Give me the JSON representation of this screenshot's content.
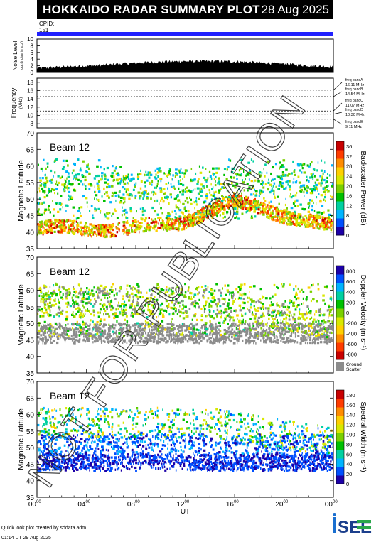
{
  "header": {
    "title": "HOKKAIDO RADAR SUMMARY PLOT",
    "date": "28 Aug 2025",
    "cpid_label": "CPID:",
    "cpid_value": "151"
  },
  "footer": {
    "credit": "Quick look plot created by sddata.adm",
    "timestamp": "01:14 UT 29 Aug 2025",
    "logo_text": "ISEE"
  },
  "watermark": "NOT FOR PUBLICATION",
  "colors": {
    "accent_bar": "#2121ff",
    "ground_scatter": "#8c8c8c"
  },
  "chart_data": [
    {
      "type": "area",
      "name": "noise-level",
      "ylabel": "Noise Level",
      "ylabel_sub": "log₁₀(noise in a.u.)",
      "yticks": [
        "0",
        "2",
        "4",
        "6",
        "8",
        "10"
      ],
      "ylim": [
        0,
        10
      ],
      "x": [
        0,
        2,
        4,
        6,
        8,
        10,
        12,
        14,
        16,
        18,
        20,
        22,
        24
      ],
      "values": [
        1.2,
        1.6,
        1.9,
        2.3,
        2.8,
        3.1,
        3.3,
        3.3,
        3.2,
        2.9,
        2.5,
        2.0,
        1.6
      ]
    },
    {
      "type": "line",
      "name": "frequency",
      "ylabel": "Frequency",
      "ylabel_sub": "(MHz)",
      "yticks": [
        "8",
        "10",
        "12",
        "14",
        "16",
        "18"
      ],
      "ylim": [
        7,
        19
      ],
      "bands": [
        {
          "label": "freq bandA",
          "value": "16.11 MHz",
          "freq": 16.11
        },
        {
          "label": "freq bandB",
          "value": "14.54 MHz",
          "freq": 14.54
        },
        {
          "label": "freq bandC",
          "value": "11.07 MHz",
          "freq": 11.07
        },
        {
          "label": "freq bandD",
          "value": "10.30 MHz",
          "freq": 10.3
        },
        {
          "label": "freq bandE",
          "value": "9.11 MHz",
          "freq": 9.11
        }
      ]
    },
    {
      "type": "heatmap",
      "name": "backscatter-power",
      "beam": "Beam 12",
      "ylabel": "Magnetic Latitude",
      "yticks": [
        "35",
        "40",
        "45",
        "50",
        "55",
        "60",
        "65",
        "70"
      ],
      "ylim": [
        35,
        70
      ],
      "colorbar_label": "Backscatter Power (dB)",
      "colorbar_ticks": [
        "0",
        "4",
        "8",
        "12",
        "16",
        "20",
        "24",
        "28",
        "32",
        "36"
      ],
      "colorbar_range": [
        0,
        38
      ],
      "colormap": [
        "#1c00a8",
        "#0050ff",
        "#00b4ff",
        "#00d0a0",
        "#00c000",
        "#7ad000",
        "#d8e800",
        "#ffd000",
        "#ff8c00",
        "#ff3c00",
        "#c80000"
      ]
    },
    {
      "type": "heatmap",
      "name": "doppler-velocity",
      "beam": "Beam 12",
      "ylabel": "Magnetic Latitude",
      "yticks": [
        "35",
        "40",
        "45",
        "50",
        "55",
        "60",
        "65",
        "70"
      ],
      "ylim": [
        35,
        70
      ],
      "colorbar_label": "Doppler Velocity (m s⁻¹)",
      "colorbar_ticks": [
        "800",
        "600",
        "400",
        "200",
        "0",
        "-200",
        "-400",
        "-600",
        "-800"
      ],
      "colorbar_range": [
        -900,
        900
      ],
      "colormap": [
        "#c80000",
        "#ff3c00",
        "#ff8c00",
        "#ffd000",
        "#d8e800",
        "#7ad000",
        "#00c000",
        "#00d0a0",
        "#00b4ff",
        "#0050ff",
        "#1c00a8"
      ],
      "ground_scatter_label": [
        "Ground",
        "Scatter"
      ]
    },
    {
      "type": "heatmap",
      "name": "spectral-width",
      "beam": "Beam 12",
      "ylabel": "Magnetic Latitude",
      "yticks": [
        "35",
        "40",
        "45",
        "50",
        "55",
        "60",
        "65",
        "70"
      ],
      "ylim": [
        35,
        70
      ],
      "colorbar_label": "Spectral Width (m s⁻¹)",
      "colorbar_ticks": [
        "0",
        "20",
        "40",
        "60",
        "80",
        "100",
        "120",
        "140",
        "160",
        "180"
      ],
      "colorbar_range": [
        0,
        190
      ],
      "colormap": [
        "#1c00a8",
        "#0050ff",
        "#00b4ff",
        "#00d0a0",
        "#00c000",
        "#7ad000",
        "#d8e800",
        "#ffd000",
        "#ff8c00",
        "#ff3c00",
        "#c80000"
      ]
    }
  ],
  "time_axis": {
    "label": "UT",
    "range": [
      0,
      24
    ],
    "ticks": [
      {
        "h": "00",
        "m": "00"
      },
      {
        "h": "04",
        "m": "00"
      },
      {
        "h": "08",
        "m": "00"
      },
      {
        "h": "12",
        "m": "00"
      },
      {
        "h": "16",
        "m": "00"
      },
      {
        "h": "20",
        "m": "00"
      },
      {
        "h": "00",
        "m": "00"
      }
    ]
  }
}
